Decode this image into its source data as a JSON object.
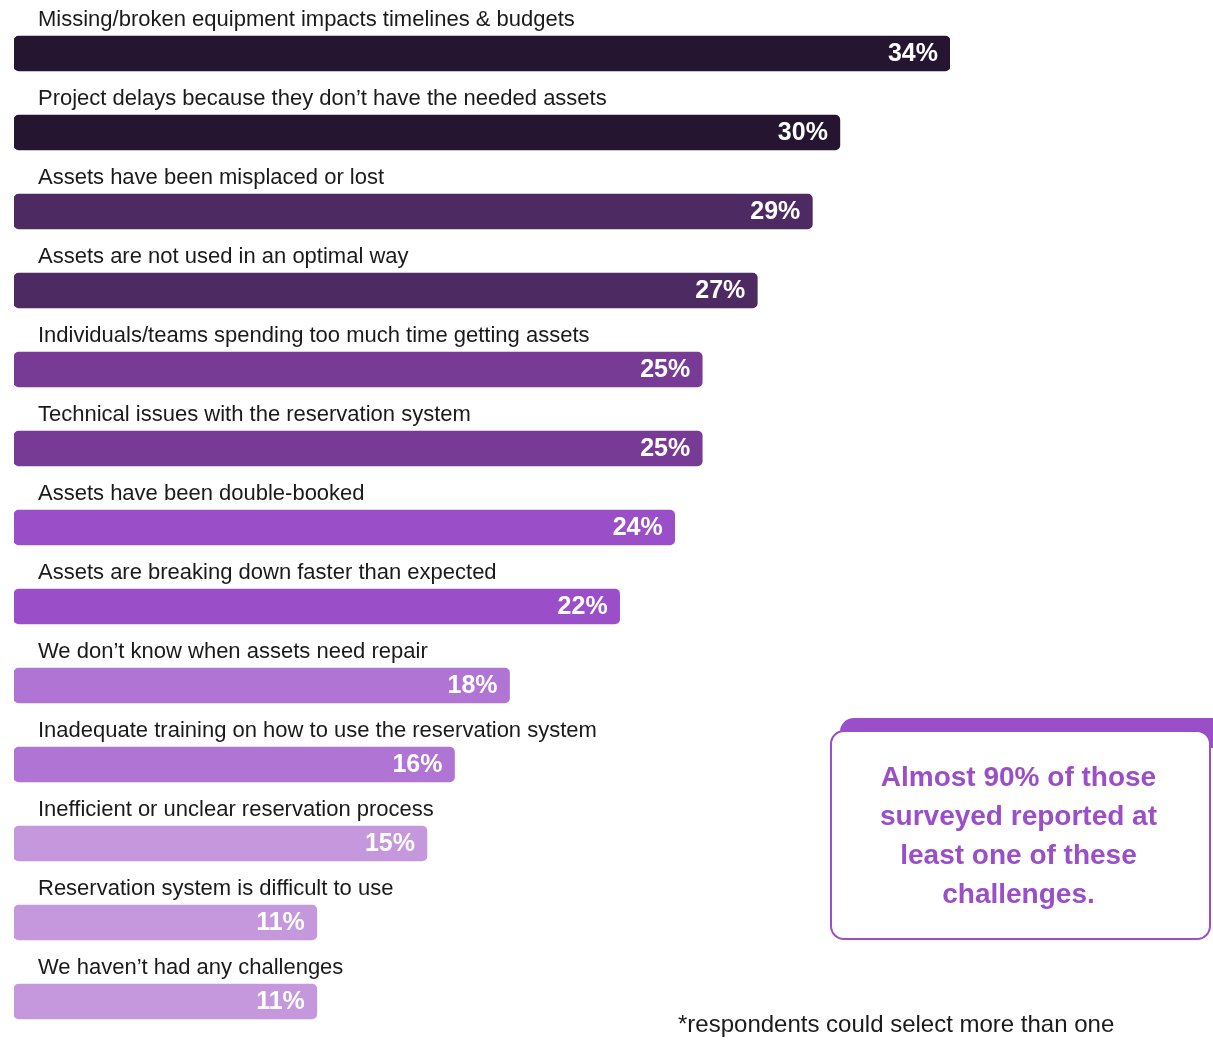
{
  "chart_data": {
    "type": "bar",
    "orientation": "horizontal",
    "categories": [
      "Missing/broken equipment impacts timelines & budgets",
      "Project delays because they don’t have the needed assets",
      "Assets have been misplaced or lost",
      "Assets are not used in an optimal way",
      "Individuals/teams spending too much time getting assets",
      "Technical issues with the reservation system",
      "Assets have been double-booked",
      "Assets are breaking down faster than expected",
      "We don’t know when assets need repair",
      "Inadequate training on how to use the reservation system",
      "Inefficient or unclear reservation process",
      "Reservation system is difficult to use",
      "We haven’t had any challenges"
    ],
    "values": [
      34,
      30,
      29,
      27,
      25,
      25,
      24,
      22,
      18,
      16,
      15,
      11,
      11
    ],
    "value_labels": [
      "34%",
      "30%",
      "29%",
      "27%",
      "25%",
      "25%",
      "24%",
      "22%",
      "18%",
      "16%",
      "15%",
      "11%",
      "11%"
    ],
    "colors": [
      "#261530",
      "#261530",
      "#4e2a63",
      "#4e2a63",
      "#773b96",
      "#773b96",
      "#9a4ec8",
      "#9a4ec8",
      "#b074d4",
      "#b074d4",
      "#c597dc",
      "#c597dc",
      "#c597dc"
    ],
    "annotations": [
      "Almost 90% of those surveyed reported at least one of these challenges.",
      "*respondents could select more than one"
    ],
    "legend": false
  }
}
